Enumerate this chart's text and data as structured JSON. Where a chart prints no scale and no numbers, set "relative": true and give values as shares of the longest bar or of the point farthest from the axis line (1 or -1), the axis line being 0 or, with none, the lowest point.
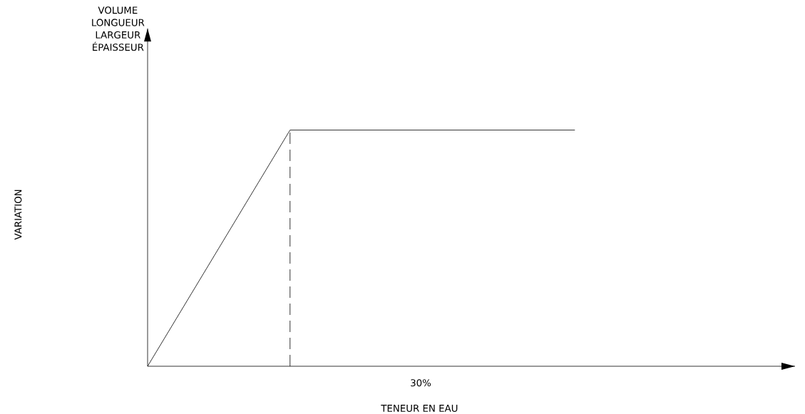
{
  "chart_data": {
    "type": "line",
    "relative": true,
    "xlabel": "TENEUR EN EAU",
    "annotations": [
      "VOLUME",
      "LONGUEUR",
      "LARGEUR",
      "ÉPAISSEUR",
      "30%",
      "VARIATION"
    ],
    "marker": "none",
    "categories": [
      null,
      null,
      null,
      null
    ],
    "series": [
      {
        "color": "#000000",
        "values": [
          0,
          1,
          1,
          1
        ],
        "line_style": "solid"
      }
    ]
  }
}
